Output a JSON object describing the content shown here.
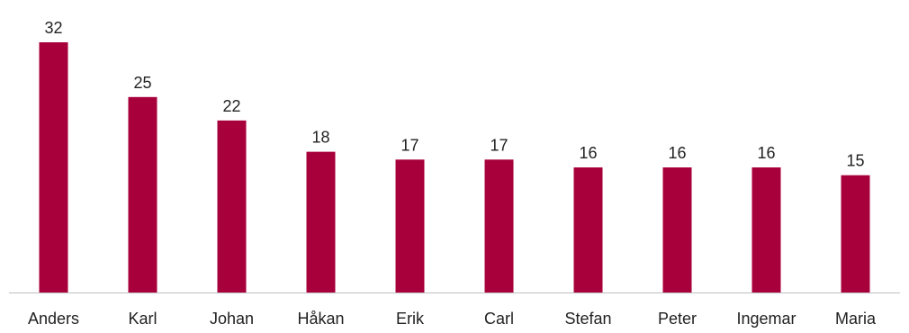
{
  "chart_data": {
    "type": "bar",
    "title": "",
    "xlabel": "",
    "ylabel": "",
    "categories": [
      "Anders",
      "Karl",
      "Johan",
      "Håkan",
      "Erik",
      "Carl",
      "Stefan",
      "Peter",
      "Ingemar",
      "Maria"
    ],
    "values": [
      32,
      25,
      22,
      18,
      17,
      17,
      16,
      16,
      16,
      15
    ],
    "ylim": [
      0,
      32
    ],
    "data_labels": true,
    "grid": false,
    "legend": "none",
    "bar_color": "#a8003b",
    "axis_color": "#bfbfbf"
  }
}
